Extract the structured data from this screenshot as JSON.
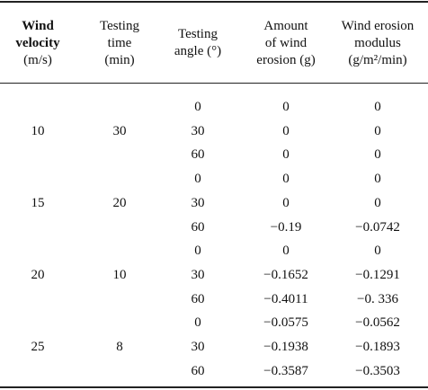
{
  "headers": {
    "wind_velocity": [
      "Wind",
      "velocity",
      "(m/s)"
    ],
    "testing_time": [
      "Testing",
      "time",
      "(min)"
    ],
    "testing_angle": [
      "Testing",
      "angle (°)"
    ],
    "amount": [
      "Amount",
      "of wind",
      "erosion (g)"
    ],
    "modulus": [
      "Wind erosion",
      "modulus",
      "(g/m²/min)"
    ]
  },
  "groups": [
    {
      "velocity": "10",
      "time": "30",
      "rows": [
        {
          "angle": "0",
          "amount": "0",
          "modulus": "0"
        },
        {
          "angle": "30",
          "amount": "0",
          "modulus": "0"
        },
        {
          "angle": "60",
          "amount": "0",
          "modulus": "0"
        }
      ]
    },
    {
      "velocity": "15",
      "time": "20",
      "rows": [
        {
          "angle": "0",
          "amount": "0",
          "modulus": "0"
        },
        {
          "angle": "30",
          "amount": "0",
          "modulus": "0"
        },
        {
          "angle": "60",
          "amount": "−0.19",
          "modulus": "−0.0742"
        }
      ]
    },
    {
      "velocity": "20",
      "time": "10",
      "rows": [
        {
          "angle": "0",
          "amount": "0",
          "modulus": "0"
        },
        {
          "angle": "30",
          "amount": "−0.1652",
          "modulus": "−0.1291"
        },
        {
          "angle": "60",
          "amount": "−0.4011",
          "modulus": "−0. 336"
        }
      ]
    },
    {
      "velocity": "25",
      "time": "8",
      "rows": [
        {
          "angle": "0",
          "amount": "−0.0575",
          "modulus": "−0.0562"
        },
        {
          "angle": "30",
          "amount": "−0.1938",
          "modulus": "−0.1893"
        },
        {
          "angle": "60",
          "amount": "−0.3587",
          "modulus": "−0.3503"
        }
      ]
    }
  ]
}
